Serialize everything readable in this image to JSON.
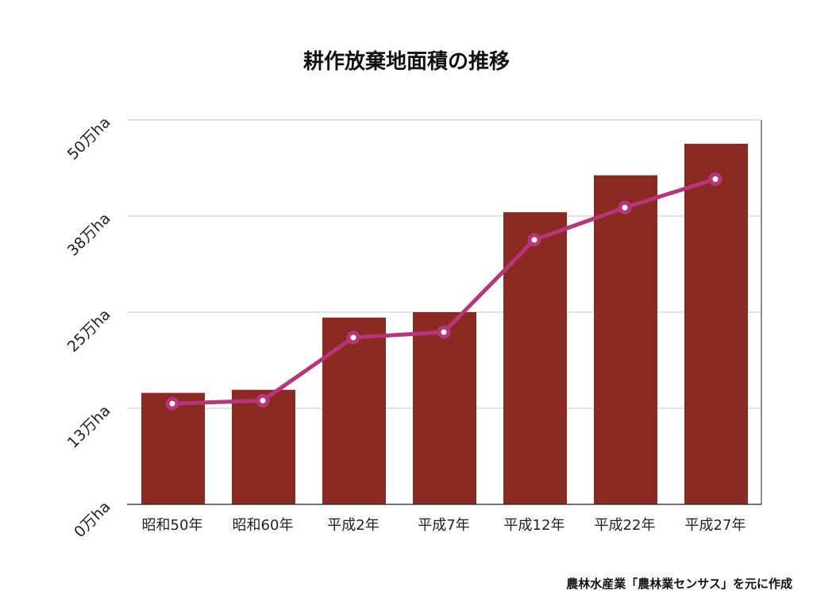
{
  "chart_data": {
    "type": "bar",
    "title": "耕作放棄地面積の推移",
    "categories": [
      "昭和50年",
      "昭和60年",
      "平成2年",
      "平成7年",
      "平成12年",
      "平成22年",
      "平成27年"
    ],
    "series": [
      {
        "type": "bar",
        "values": [
          14.5,
          14.9,
          24.3,
          25.0,
          38.0,
          42.8,
          46.9
        ]
      },
      {
        "type": "line",
        "values": [
          13.1,
          13.5,
          21.7,
          22.4,
          34.4,
          38.6,
          42.3
        ]
      }
    ],
    "y_ticks": [
      "0万ha",
      "13万ha",
      "25万ha",
      "38万ha",
      "50万ha"
    ],
    "y_tick_values": [
      0,
      12.5,
      25,
      37.5,
      50
    ],
    "ylim": [
      0,
      50
    ],
    "xlabel": "",
    "ylabel": "",
    "grid": true,
    "legend": "none",
    "source": "農林水産業「農林業センサス」を元に作成",
    "colors": {
      "bar": "#8b2a23",
      "line": "#b8357a",
      "grid": "#c8c8c8",
      "axis": "#222222"
    }
  }
}
